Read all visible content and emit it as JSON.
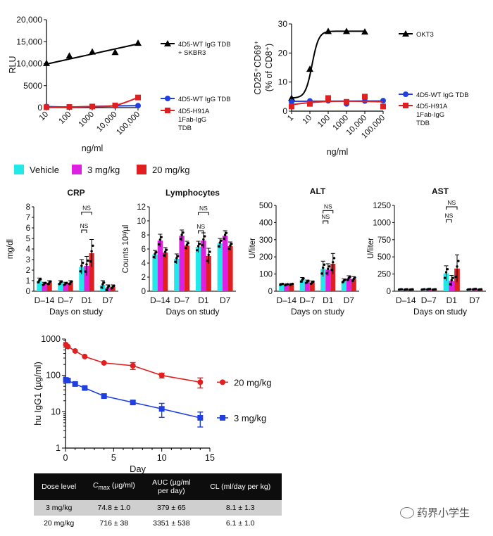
{
  "chart_data": [
    {
      "id": "A",
      "type": "line",
      "xscale": "log",
      "xlim": [
        10,
        100000
      ],
      "ylim": [
        0,
        20000
      ],
      "xlabel": "ng/ml",
      "ylabel": "RLU",
      "xticks": [
        "10",
        "100",
        "1000",
        "10,000",
        "100,000"
      ],
      "yticks": [
        "0",
        "5000",
        "10,000",
        "15,000",
        "20,000"
      ],
      "series": [
        {
          "name": "4D5-WT IgG TDB + SKBR3",
          "legend": [
            "4D5-WT IgG TDB",
            "+ SKBR3"
          ],
          "color": "#000000",
          "marker": "triangle",
          "x": [
            10,
            100,
            1000,
            10000,
            100000
          ],
          "y": [
            10100,
            11800,
            12700,
            12600,
            14700
          ]
        },
        {
          "name": "4D5-WT IgG TDB",
          "legend": [
            "4D5-WT IgG TDB"
          ],
          "color": "#1f3fe0",
          "marker": "circle",
          "x": [
            10,
            100,
            1000,
            10000,
            100000
          ],
          "y": [
            250,
            150,
            250,
            400,
            450
          ]
        },
        {
          "name": "4D5-H91A 1Fab-IgG TDB",
          "legend": [
            "4D5-H91A",
            "1Fab-IgG",
            "TDB"
          ],
          "color": "#e02020",
          "marker": "square",
          "x": [
            10,
            100,
            1000,
            10000,
            100000
          ],
          "y": [
            100,
            150,
            250,
            500,
            2300
          ]
        }
      ]
    },
    {
      "id": "B",
      "type": "line",
      "xscale": "log",
      "xlim": [
        1,
        100000
      ],
      "ylim": [
        0,
        30
      ],
      "xlabel": "ng/ml",
      "ylabel": [
        "CD25⁺CD69⁺",
        "(% of CD8⁺)"
      ],
      "xticks": [
        "1",
        "10",
        "100",
        "1000",
        "10,000",
        "100,000"
      ],
      "yticks": [
        "0",
        "10",
        "20",
        "30"
      ],
      "series": [
        {
          "name": "OKT3",
          "legend": [
            "OKT3"
          ],
          "color": "#000000",
          "marker": "triangle",
          "x": [
            1,
            10,
            100,
            1000,
            10000
          ],
          "y": [
            4.5,
            14.5,
            27.5,
            27.5,
            27.3
          ]
        },
        {
          "name": "4D5-WT IgG TDB",
          "legend": [
            "4D5-WT IgG TDB"
          ],
          "color": "#1f3fe0",
          "marker": "circle",
          "x": [
            1,
            10,
            100,
            1000,
            10000,
            100000
          ],
          "y": [
            3.2,
            3.5,
            3.6,
            2.5,
            3.5,
            3.6
          ]
        },
        {
          "name": "4D5-H91A 1Fab-IgG TDB",
          "legend": [
            "4D5-H91A",
            "1Fab-IgG",
            "TDB"
          ],
          "color": "#e02020",
          "marker": "square",
          "x": [
            1,
            10,
            100,
            1000,
            10000,
            100000
          ],
          "y": [
            1.6,
            2.5,
            4.5,
            3.2,
            5.0,
            1.6
          ]
        }
      ]
    },
    {
      "id": "legend",
      "type": "legend",
      "entries": [
        {
          "label": "Vehicle",
          "color": "#22e8ea"
        },
        {
          "label": "3 mg/kg",
          "color": "#e020e0"
        },
        {
          "label": "20 mg/kg",
          "color": "#e02020"
        }
      ]
    },
    {
      "id": "CRP",
      "type": "bar",
      "title": "CRP",
      "ylabel": "mg/dl",
      "xlabel": "Days on study",
      "categories": [
        "D–14",
        "D–7",
        "D1",
        "D7"
      ],
      "ylim": [
        0,
        8
      ],
      "yticks": [
        "0",
        "1",
        "2",
        "3",
        "4",
        "5",
        "6",
        "7",
        "8"
      ],
      "series": [
        {
          "name": "Vehicle",
          "values": [
            1.0,
            0.8,
            2.3,
            0.6
          ],
          "err": [
            0.25,
            0.2,
            0.7,
            0.4
          ]
        },
        {
          "name": "3 mg/kg",
          "values": [
            0.7,
            0.7,
            2.4,
            0.3
          ],
          "err": [
            0.15,
            0.15,
            0.9,
            0.3
          ]
        },
        {
          "name": "20 mg/kg",
          "values": [
            0.8,
            0.8,
            3.6,
            0.4
          ],
          "err": [
            0.2,
            0.2,
            1.3,
            0.2
          ]
        }
      ],
      "sig": [
        {
          "label": "NS",
          "level": 7.5
        },
        {
          "label": "NS",
          "level": 5.8
        }
      ]
    },
    {
      "id": "Lymph",
      "type": "bar",
      "title": "Lymphocytes",
      "ylabel": "Counts 10³/µl",
      "xlabel": "Days on study",
      "categories": [
        "D–14",
        "D–7",
        "D1",
        "D7"
      ],
      "ylim": [
        0,
        12
      ],
      "yticks": [
        "0",
        "2",
        "4",
        "6",
        "8",
        "10",
        "12"
      ],
      "series": [
        {
          "name": "Vehicle",
          "values": [
            5.2,
            4.6,
            6.3,
            6.8
          ],
          "err": [
            0.6,
            0.7,
            0.8,
            0.7
          ]
        },
        {
          "name": "3 mg/kg",
          "values": [
            7.2,
            7.9,
            7.2,
            7.9
          ],
          "err": [
            0.9,
            0.8,
            1.1,
            0.7
          ]
        },
        {
          "name": "20 mg/kg",
          "values": [
            5.5,
            6.5,
            5.0,
            6.4
          ],
          "err": [
            0.7,
            0.6,
            1.1,
            0.6
          ]
        }
      ],
      "sig": [
        {
          "label": "NS",
          "level": 11.2
        },
        {
          "label": "NS",
          "level": 8.6
        }
      ]
    },
    {
      "id": "ALT",
      "type": "bar",
      "title": "ALT",
      "ylabel": "U/liter",
      "xlabel": "Days on study",
      "categories": [
        "D–14",
        "D–7",
        "D1",
        "D7"
      ],
      "ylim": [
        0,
        500
      ],
      "yticks": [
        "0",
        "100",
        "200",
        "300",
        "400",
        "500"
      ],
      "series": [
        {
          "name": "Vehicle",
          "values": [
            40,
            65,
            130,
            60
          ],
          "err": [
            5,
            15,
            45,
            12
          ]
        },
        {
          "name": "3 mg/kg",
          "values": [
            38,
            55,
            125,
            75
          ],
          "err": [
            5,
            10,
            35,
            15
          ]
        },
        {
          "name": "20 mg/kg",
          "values": [
            40,
            50,
            160,
            70
          ],
          "err": [
            5,
            10,
            60,
            15
          ]
        }
      ],
      "sig": [
        {
          "label": "NS",
          "level": 470
        },
        {
          "label": "NS",
          "level": 410
        }
      ]
    },
    {
      "id": "AST",
      "type": "bar",
      "title": "AST",
      "ylabel": "U/liter",
      "xlabel": "Days on study",
      "categories": [
        "D–14",
        "D–7",
        "D1",
        "D7"
      ],
      "ylim": [
        0,
        1250
      ],
      "yticks": [
        "0",
        "250",
        "500",
        "750",
        "1000",
        "1250"
      ],
      "series": [
        {
          "name": "Vehicle",
          "values": [
            25,
            25,
            260,
            25
          ],
          "err": [
            5,
            5,
            110,
            5
          ]
        },
        {
          "name": "3 mg/kg",
          "values": [
            25,
            30,
            150,
            30
          ],
          "err": [
            5,
            5,
            80,
            5
          ]
        },
        {
          "name": "20 mg/kg",
          "values": [
            25,
            25,
            330,
            25
          ],
          "err": [
            5,
            5,
            200,
            5
          ]
        }
      ],
      "sig": [
        {
          "label": "NS",
          "level": 1230
        },
        {
          "label": "NS",
          "level": 1040
        }
      ]
    },
    {
      "id": "PK",
      "type": "line",
      "yscale": "log",
      "xlabel": "Day",
      "ylabel": "hu IgG1 (µg/ml)",
      "xlim": [
        0,
        15
      ],
      "ylim": [
        1,
        1000
      ],
      "xticks": [
        "0",
        "5",
        "10",
        "15"
      ],
      "yticks": [
        "1",
        "10",
        "100",
        "1000"
      ],
      "series": [
        {
          "name": "20 mg/kg",
          "color": "#e02020",
          "marker": "circle",
          "x": [
            0.04,
            0.25,
            1,
            2,
            4,
            7,
            10,
            14
          ],
          "y": [
            700,
            620,
            470,
            330,
            220,
            185,
            100,
            65
          ],
          "err": [
            0,
            0,
            0,
            0,
            0,
            40,
            15,
            20
          ]
        },
        {
          "name": "3 mg/kg",
          "color": "#1f3fe0",
          "marker": "square",
          "x": [
            0.04,
            0.25,
            1,
            2,
            4,
            7,
            10,
            14
          ],
          "y": [
            75,
            72,
            58,
            45,
            27,
            18,
            12,
            6.8
          ],
          "err": [
            5,
            5,
            5,
            3,
            2,
            2,
            5,
            3
          ]
        }
      ]
    }
  ],
  "pk_table": {
    "headers": [
      [
        "Dose level"
      ],
      [
        "C",
        "max",
        " (µg/ml)"
      ],
      [
        "AUC (µg/ml",
        "per day)"
      ],
      [
        "CL (ml/day per kg)"
      ]
    ],
    "rows": [
      [
        "3 mg/kg",
        "74.8 ± 1.0",
        "379  ± 65",
        "8.1 ± 1.3"
      ],
      [
        "20 mg/kg",
        "716 ± 38",
        "3351 ± 538",
        "6.1  ± 1.0"
      ]
    ]
  },
  "watermark": "药界小学生",
  "colors": {
    "vehicle": "#22e8ea",
    "low": "#e020e0",
    "high": "#e02020",
    "blue": "#1f3fe0",
    "black": "#000000"
  }
}
